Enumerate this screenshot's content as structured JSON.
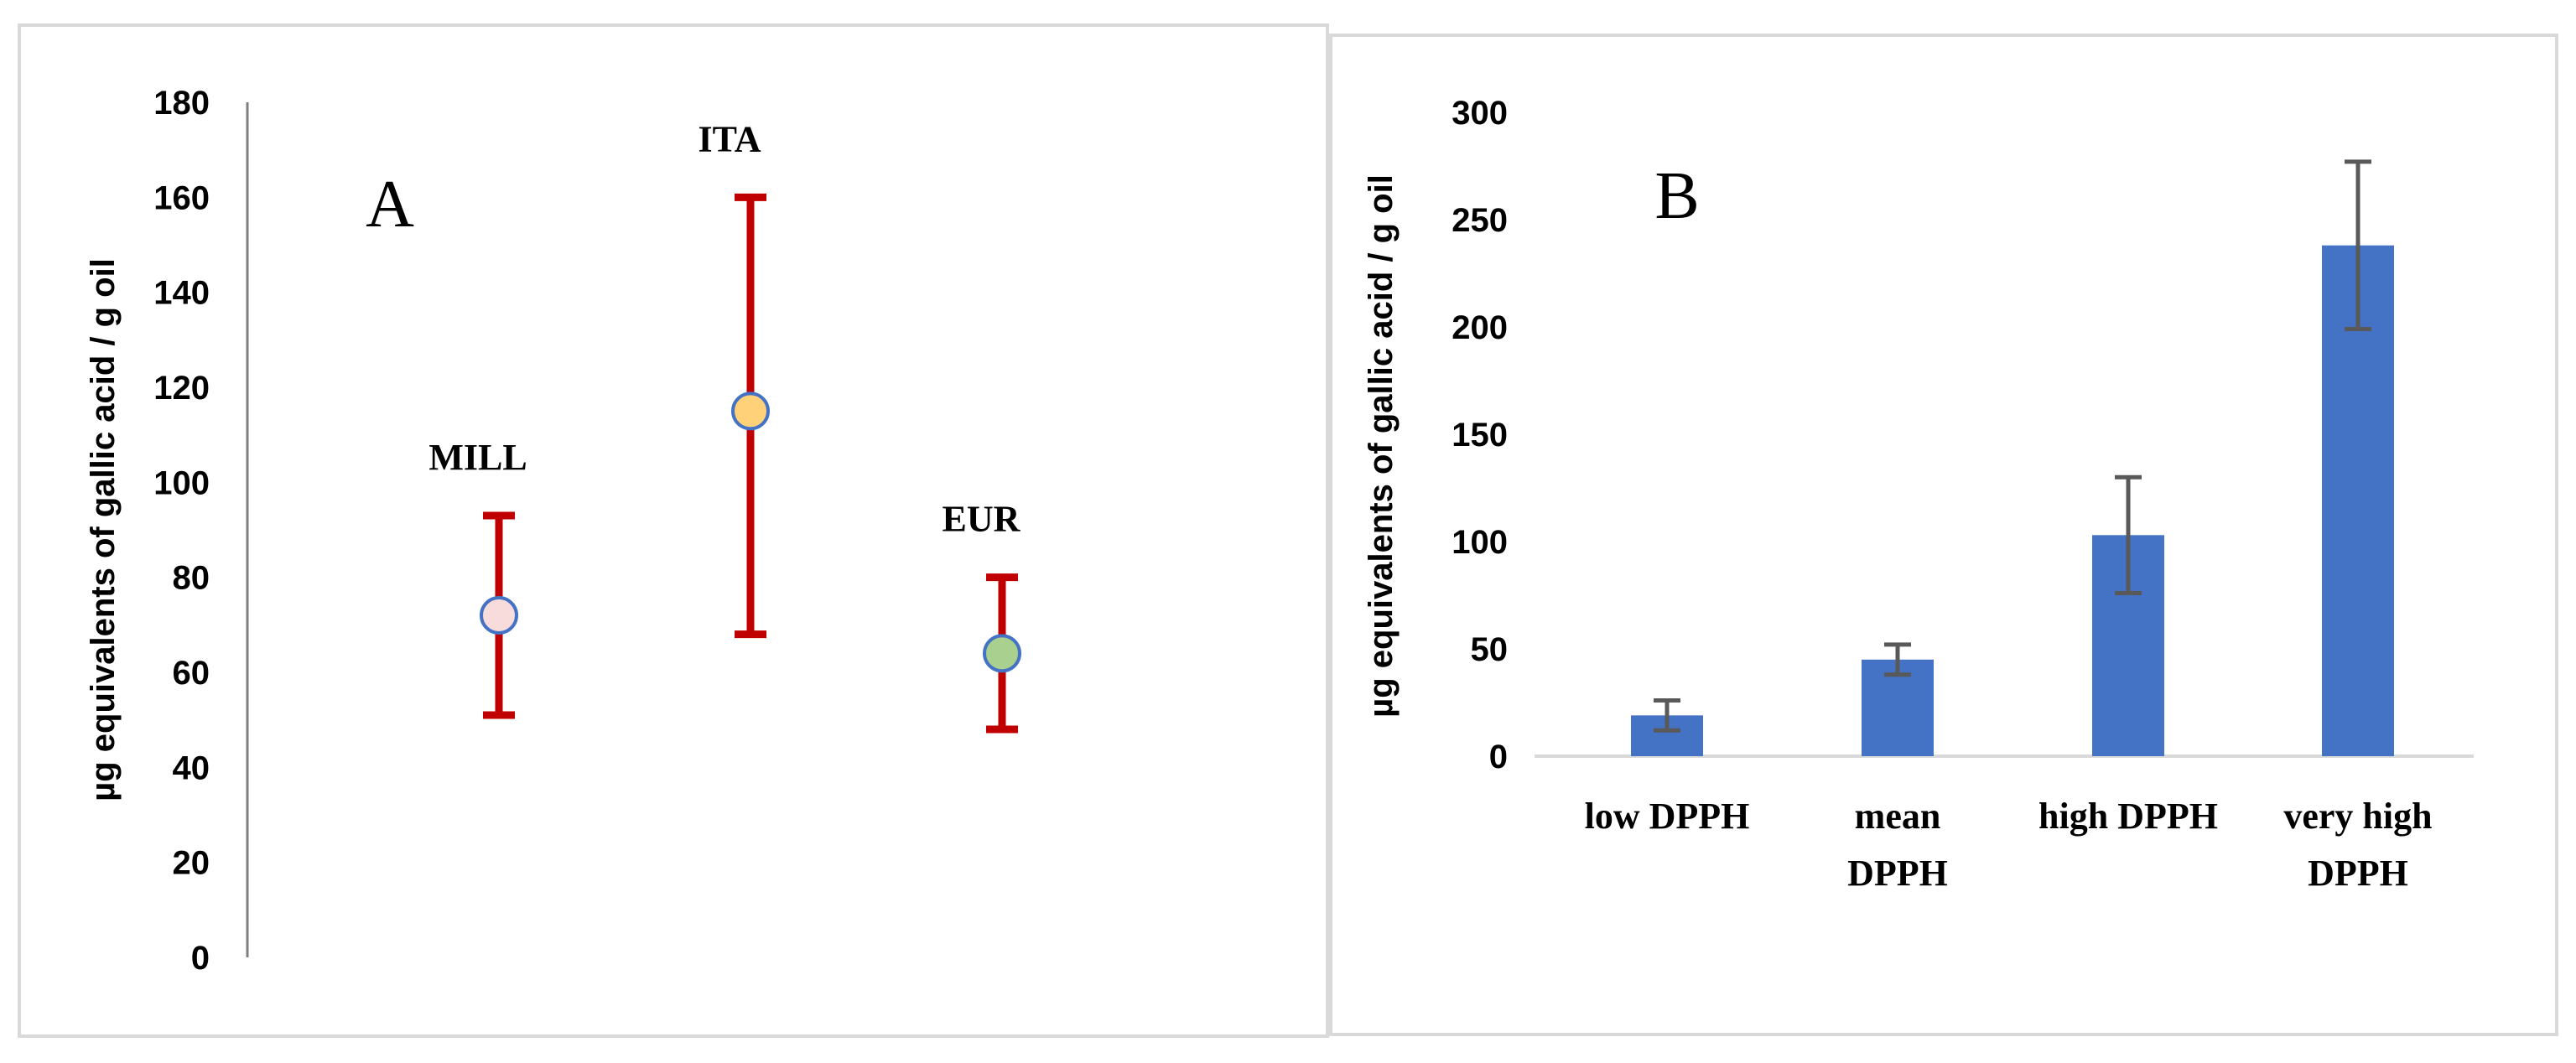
{
  "chart_data": [
    {
      "type": "scatter",
      "panel_label": "A",
      "ylabel": "µg equivalents of gallic acid / g oil",
      "ylim": [
        0,
        180
      ],
      "yticks": [
        "0",
        "20",
        "40",
        "60",
        "80",
        "100",
        "120",
        "140",
        "160",
        "180"
      ],
      "points": [
        {
          "label": "MILL",
          "y": 72,
          "err_low": 51,
          "err_high": 93,
          "color": "#f8dcdc"
        },
        {
          "label": "ITA",
          "y": 115,
          "err_low": 68,
          "err_high": 160,
          "color": "#ffd27a"
        },
        {
          "label": "EUR",
          "y": 64,
          "err_low": 48,
          "err_high": 80,
          "color": "#a9d08e"
        }
      ],
      "errorbar_color": "#c00000",
      "marker_edge_color": "#4472c4",
      "grid": false
    },
    {
      "type": "bar",
      "panel_label": "B",
      "ylabel": "µg equivalents of gallic acid / g oil",
      "ylim": [
        0,
        300
      ],
      "yticks": [
        "0",
        "50",
        "100",
        "150",
        "200",
        "250",
        "300"
      ],
      "categories": [
        [
          "low DPPH"
        ],
        [
          "mean",
          "DPPH"
        ],
        [
          "high DPPH"
        ],
        [
          "very high",
          "DPPH"
        ]
      ],
      "values": [
        19,
        45,
        103,
        238
      ],
      "errors": [
        7,
        7,
        27,
        39
      ],
      "bar_color": "#4472c4",
      "errorbar_color": "#595959",
      "grid": false
    }
  ]
}
